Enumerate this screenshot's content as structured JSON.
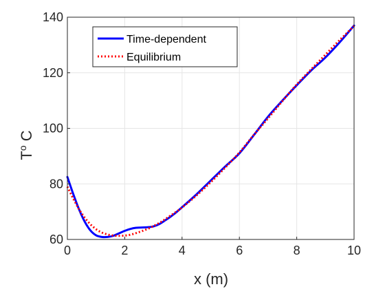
{
  "chart_data": {
    "type": "line",
    "xlabel": "x (m)",
    "ylabel_main": "T",
    "ylabel_sup": "o",
    "ylabel_suffix": " C",
    "xlim": [
      0,
      10
    ],
    "ylim": [
      60,
      140
    ],
    "xticks": [
      0,
      2,
      4,
      6,
      8,
      10
    ],
    "yticks": [
      60,
      80,
      100,
      120,
      140
    ],
    "grid": true,
    "legend_position": "top-left",
    "series": [
      {
        "name": "Time-dependent",
        "color": "#0000ff",
        "style": "solid",
        "x": [
          0,
          0.2,
          0.4,
          0.6,
          0.8,
          1.0,
          1.2,
          1.4,
          1.6,
          1.8,
          2.0,
          2.2,
          2.4,
          2.6,
          2.8,
          3.0,
          3.2,
          3.4,
          3.6,
          3.8,
          4.0,
          4.5,
          5.0,
          5.5,
          6.0,
          6.5,
          7.0,
          7.5,
          8.0,
          8.5,
          9.0,
          9.5,
          10.0
        ],
        "y": [
          82.5,
          76.5,
          71.0,
          66.5,
          63.3,
          61.5,
          60.9,
          60.9,
          61.3,
          62.2,
          63.1,
          63.8,
          64.2,
          64.3,
          64.4,
          64.7,
          65.5,
          66.8,
          68.2,
          69.8,
          71.6,
          76.2,
          81.2,
          86.2,
          91.0,
          97.5,
          104.2,
          110.0,
          115.5,
          120.8,
          125.5,
          131.0,
          137.0
        ]
      },
      {
        "name": "Equilibrium",
        "color": "#ff0000",
        "style": "dotted",
        "x": [
          0,
          0.2,
          0.4,
          0.6,
          0.8,
          1.0,
          1.2,
          1.4,
          1.6,
          1.8,
          2.0,
          2.2,
          2.4,
          2.6,
          2.8,
          3.0,
          3.2,
          3.4,
          3.6,
          3.8,
          4.0,
          4.5,
          5.0,
          5.5,
          6.0,
          6.5,
          7.0,
          7.5,
          8.0,
          8.5,
          9.0,
          9.5,
          10.0
        ],
        "y": [
          79.0,
          74.8,
          71.0,
          67.9,
          65.5,
          63.7,
          62.5,
          61.8,
          61.4,
          61.3,
          61.4,
          61.7,
          62.3,
          63.0,
          63.8,
          64.8,
          65.9,
          67.2,
          68.6,
          70.0,
          71.5,
          75.8,
          80.6,
          85.8,
          91.3,
          97.6,
          103.6,
          109.8,
          115.8,
          121.2,
          126.5,
          131.8,
          136.8
        ]
      }
    ]
  }
}
